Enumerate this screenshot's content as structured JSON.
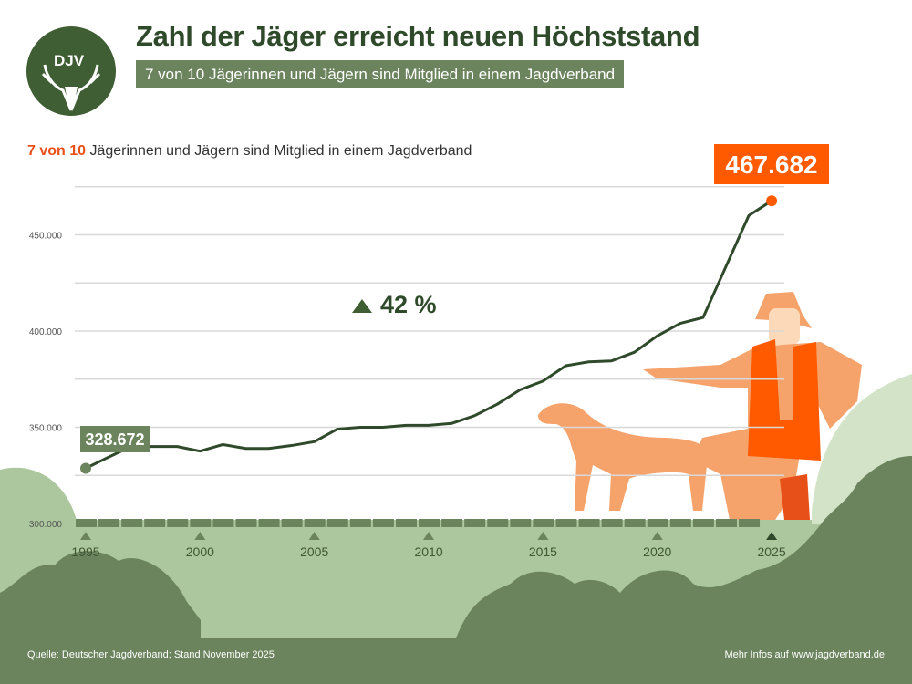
{
  "header": {
    "logo_text": "DJV",
    "title": "Zahl der Jäger erreicht neuen Höchststand",
    "subtitle": "7 von 10 Jägerinnen und Jägern sind Mitglied in einem Jagdverband"
  },
  "note": {
    "highlight": "7 von 10",
    "text": " Jägerinnen und Jägern sind Mitglied in einem Jagdverband"
  },
  "footer": {
    "source": "Quelle: Deutscher Jagdverband; Stand November 2025",
    "more_info": "Mehr Infos auf www.jagdverband.de"
  },
  "colors": {
    "line": "#2f4a2a",
    "accent": "#ff5a00",
    "start_label": "#6b845d",
    "ground": "#acc79d",
    "bushes": "#6b845d"
  },
  "chart_data": {
    "type": "line",
    "title": "",
    "xlabel": "",
    "ylabel": "",
    "ylim": [
      300000,
      475000
    ],
    "y_ticks": [
      300000,
      350000,
      400000,
      450000
    ],
    "y_tick_labels": [
      "300.000",
      "350.000",
      "400.000",
      "450.000"
    ],
    "x_ticks": [
      1995,
      2000,
      2005,
      2010,
      2015,
      2020,
      2025
    ],
    "x_tick_labels": [
      "1995",
      "2000",
      "2005",
      "2010",
      "2015",
      "2020",
      "2025"
    ],
    "grid": true,
    "x": [
      1995,
      1996,
      1997,
      1998,
      1999,
      2000,
      2001,
      2002,
      2003,
      2004,
      2005,
      2006,
      2007,
      2008,
      2009,
      2010,
      2011,
      2012,
      2013,
      2014,
      2015,
      2016,
      2017,
      2018,
      2019,
      2020,
      2021,
      2022,
      2023,
      2024,
      2025
    ],
    "values": [
      328672,
      334500,
      340000,
      340000,
      340000,
      337600,
      341000,
      339000,
      339000,
      340500,
      342500,
      349000,
      350000,
      350000,
      351000,
      351000,
      352000,
      356000,
      362000,
      369500,
      374000,
      382000,
      384000,
      384500,
      389000,
      397500,
      404000,
      407000,
      433500,
      460000,
      467682
    ],
    "start_label": "328.672",
    "end_label": "467.682",
    "annotation": "42 %"
  }
}
